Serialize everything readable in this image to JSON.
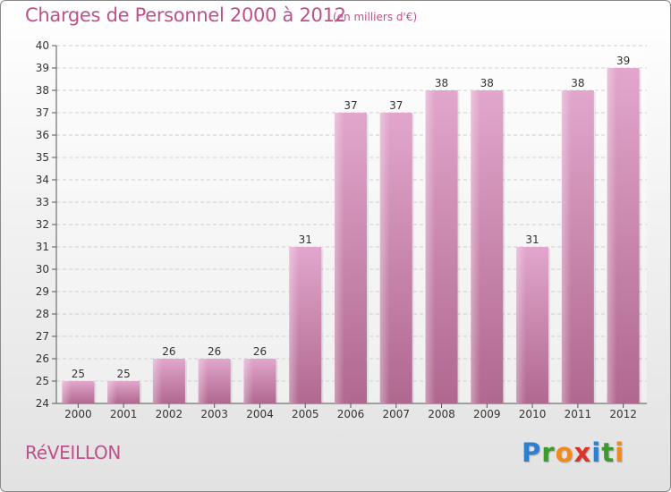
{
  "title": "Charges de Personnel 2000 à 2012",
  "subtitle": "(en milliers d'€)",
  "commune": "RéVEILLON",
  "logo": {
    "letters": [
      {
        "ch": "P",
        "color": "#2f7fd0"
      },
      {
        "ch": "r",
        "color": "#3d9a2e"
      },
      {
        "ch": "o",
        "color": "#f08a1c"
      },
      {
        "ch": "x",
        "color": "#d8342c"
      },
      {
        "ch": "i",
        "color": "#2f7fd0"
      },
      {
        "ch": "t",
        "color": "#3d9a2e"
      },
      {
        "ch": "i",
        "color": "#f08a1c"
      }
    ]
  },
  "colors": {
    "accent": "#c0508a",
    "bar_top": "#e2a6cc",
    "bar_bottom": "#b0688f",
    "axis": "#555555"
  },
  "chart_data": {
    "type": "bar",
    "title": "Charges de Personnel 2000 à 2012",
    "subtitle": "(en milliers d'€)",
    "categories": [
      "2000",
      "2001",
      "2002",
      "2003",
      "2004",
      "2005",
      "2006",
      "2007",
      "2008",
      "2009",
      "2010",
      "2011",
      "2012"
    ],
    "values": [
      25,
      25,
      26,
      26,
      26,
      31,
      37,
      37,
      38,
      38,
      31,
      38,
      39
    ],
    "ylim": [
      24,
      40
    ],
    "yticks": [
      24,
      25,
      26,
      27,
      28,
      29,
      30,
      31,
      32,
      33,
      34,
      35,
      36,
      37,
      38,
      39,
      40
    ],
    "grid": true
  }
}
